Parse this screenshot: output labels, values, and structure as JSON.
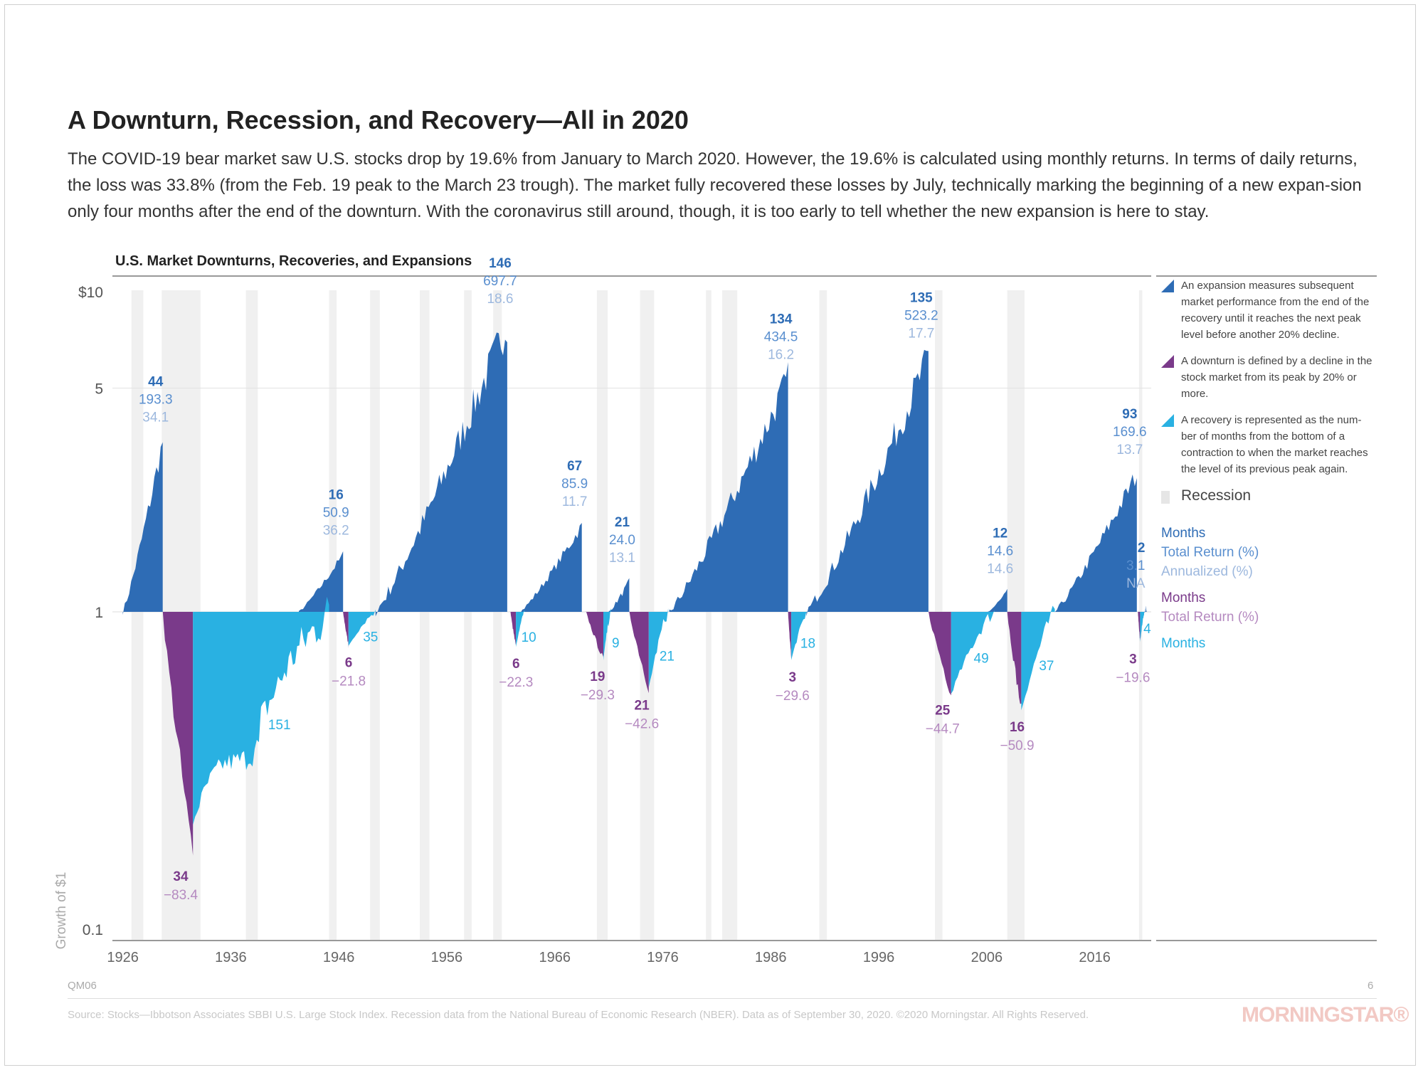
{
  "title": "A Downturn, Recession, and Recovery—All in 2020",
  "intro": "The COVID-19 bear market saw U.S. stocks drop by 19.6% from January to March 2020. However, the 19.6% is calculated using monthly returns. In terms of daily returns, the loss was 33.8% (from the Feb. 19 peak to the March 23 trough). The market fully recovered these losses by July, technically marking the beginning of a new expan-sion only four months after the end of the downturn. With the coronavirus still around, though, it is too early to tell whether the new expansion is here to stay.",
  "chart_data": {
    "type": "area",
    "title": "U.S. Market Downturns, Recoveries, and Expansions",
    "ylabel": "Growth of $1",
    "y_scale": "log",
    "ylim": [
      0.1,
      10
    ],
    "xlim": [
      1925.5,
      2020.9
    ],
    "y_ticks": [
      {
        "value": 10,
        "label": "$10"
      },
      {
        "value": 5,
        "label": "5"
      },
      {
        "value": 1,
        "label": "1"
      },
      {
        "value": 0.1,
        "label": "0.1"
      }
    ],
    "x_ticks": [
      "1926",
      "1936",
      "1946",
      "1956",
      "1966",
      "1976",
      "1986",
      "1996",
      "2006",
      "2016"
    ],
    "legend_position": "right",
    "recessions": [
      [
        1926.8,
        1927.9
      ],
      [
        1929.6,
        1933.2
      ],
      [
        1937.4,
        1938.5
      ],
      [
        1945.1,
        1945.8
      ],
      [
        1948.9,
        1949.8
      ],
      [
        1953.5,
        1954.4
      ],
      [
        1957.6,
        1958.3
      ],
      [
        1960.3,
        1961.1
      ],
      [
        1969.9,
        1970.9
      ],
      [
        1973.9,
        1975.2
      ],
      [
        1980.0,
        1980.5
      ],
      [
        1981.5,
        1982.9
      ],
      [
        1990.5,
        1991.2
      ],
      [
        2001.2,
        2001.9
      ],
      [
        2007.9,
        2009.5
      ],
      [
        2020.1,
        2020.4
      ]
    ],
    "expansions": [
      {
        "start": 1926.0,
        "end": 1929.7,
        "end_value": 3.41,
        "months": "44",
        "total_return": "193.3",
        "annualized": "34.1"
      },
      {
        "start": 1942.3,
        "end": 1946.4,
        "end_value": 1.509,
        "months": "16",
        "total_return": "50.9",
        "annualized": "36.2"
      },
      {
        "start": 1949.4,
        "end": 1961.6,
        "end_value": 7.977,
        "months": "146",
        "total_return": "697.7",
        "annualized": "18.6"
      },
      {
        "start": 1962.8,
        "end": 1968.5,
        "end_value": 1.859,
        "months": "67",
        "total_return": "85.9",
        "annualized": "11.7"
      },
      {
        "start": 1971.0,
        "end": 1972.9,
        "end_value": 1.24,
        "months": "21",
        "total_return": "24.0",
        "annualized": "13.1"
      },
      {
        "start": 1976.6,
        "end": 1987.6,
        "end_value": 5.345,
        "months": "134",
        "total_return": "434.5",
        "annualized": "16.2"
      },
      {
        "start": 1989.3,
        "end": 2000.6,
        "end_value": 6.232,
        "months": "135",
        "total_return": "523.2",
        "annualized": "17.7"
      },
      {
        "start": 2006.1,
        "end": 2007.9,
        "end_value": 1.146,
        "months": "12",
        "total_return": "14.6",
        "annualized": "14.6"
      },
      {
        "start": 2012.3,
        "end": 2019.9,
        "end_value": 2.696,
        "months": "93",
        "total_return": "169.6",
        "annualized": "13.7"
      },
      {
        "start": 2020.6,
        "end": 2020.8,
        "end_value": 1.031,
        "months": "2",
        "total_return": "3.1",
        "annualized": "NA"
      }
    ],
    "downturns": [
      {
        "start": 1929.7,
        "end": 1932.5,
        "trough": 0.166,
        "months": "34",
        "total_return": "−83.4"
      },
      {
        "start": 1946.4,
        "end": 1946.9,
        "trough": 0.782,
        "months": "6",
        "total_return": "−21.8"
      },
      {
        "start": 1961.9,
        "end": 1962.4,
        "trough": 0.777,
        "months": "6",
        "total_return": "−22.3"
      },
      {
        "start": 1968.9,
        "end": 1970.5,
        "trough": 0.707,
        "months": "19",
        "total_return": "−29.3"
      },
      {
        "start": 1972.9,
        "end": 1974.7,
        "trough": 0.574,
        "months": "21",
        "total_return": "−42.6"
      },
      {
        "start": 1987.6,
        "end": 1987.9,
        "trough": 0.704,
        "months": "3",
        "total_return": "−29.6"
      },
      {
        "start": 2000.6,
        "end": 2002.7,
        "trough": 0.553,
        "months": "25",
        "total_return": "−44.7"
      },
      {
        "start": 2007.9,
        "end": 2009.2,
        "trough": 0.491,
        "months": "16",
        "total_return": "−50.9"
      },
      {
        "start": 2020.0,
        "end": 2020.2,
        "trough": 0.804,
        "months": "3",
        "total_return": "−19.6"
      }
    ],
    "recoveries": [
      {
        "start": 1932.5,
        "end": 1945.1,
        "months": "151"
      },
      {
        "start": 1946.9,
        "end": 1949.4,
        "months": "35"
      },
      {
        "start": 1962.4,
        "end": 1963.2,
        "months": "10"
      },
      {
        "start": 1970.5,
        "end": 1971.2,
        "months": "9"
      },
      {
        "start": 1974.7,
        "end": 1976.5,
        "months": "21"
      },
      {
        "start": 1987.9,
        "end": 1989.4,
        "months": "18"
      },
      {
        "start": 2002.7,
        "end": 2006.7,
        "months": "49"
      },
      {
        "start": 2009.2,
        "end": 2012.3,
        "months": "37"
      },
      {
        "start": 2020.2,
        "end": 2020.6,
        "months": "4"
      }
    ],
    "colors": {
      "expansion": "#2e6cb5",
      "downturn": "#7a3a8a",
      "recovery": "#29b1e2",
      "recession": "#f0f0f0",
      "months_expansion": "#2e6cb5",
      "total_return_expansion": "#5a8fcf",
      "annualized": "#9db8de",
      "months_downturn": "#7a3a8a",
      "total_return_downturn": "#b58ac0",
      "months_recovery": "#29b1e2"
    }
  },
  "legend": {
    "expansion": "An expansion measures subsequent market performance from the end of the recovery until it reaches the next peak level before another 20% decline.",
    "downturn": "A downturn is defined by a decline in the stock market from its peak by 20% or more.",
    "recovery": "A recovery is represented as the num-ber of months from the bottom of a contraction to when the market reaches the level of its previous peak again.",
    "recession": "Recession",
    "key_months": "Months",
    "key_total_return": "Total Return (%)",
    "key_annualized": "Annualized (%)",
    "key_months_down": "Months",
    "key_total_return_down": "Total Return (%)",
    "key_months_recovery": "Months"
  },
  "footer": {
    "code": "QM06",
    "page": "6",
    "source": "Source: Stocks—Ibbotson Associates SBBI U.S. Large Stock Index. Recession data from the National Bureau of Economic Research (NBER). Data as of September 30, 2020. ©2020 Morningstar. All Rights Reserved.",
    "logo": "MORNINGSTAR®"
  }
}
